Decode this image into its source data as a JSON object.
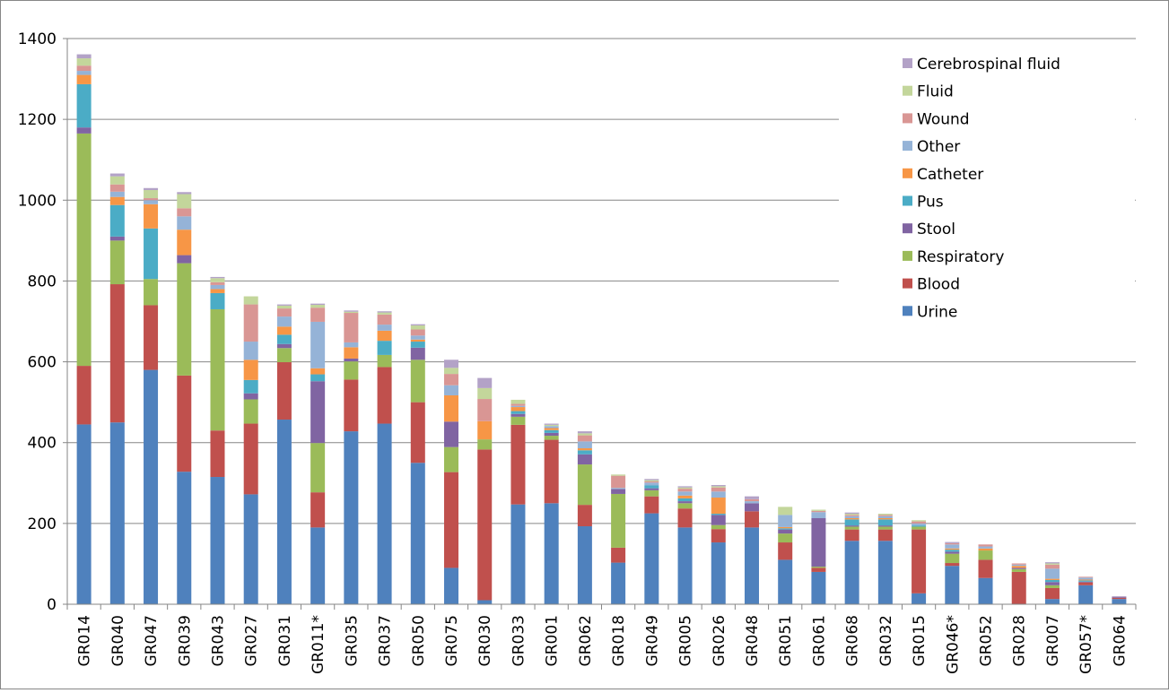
{
  "chart_data": {
    "type": "bar",
    "stacked": true,
    "title": "",
    "xlabel": "",
    "ylabel": "",
    "ylim": [
      0,
      1400
    ],
    "yticks": [
      0,
      200,
      400,
      600,
      800,
      1000,
      1200,
      1400
    ],
    "grid": "horizontal",
    "legend_position": "top-right",
    "categories": [
      "GR014",
      "GR040",
      "GR047",
      "GR039",
      "GR043",
      "GR027",
      "GR031",
      "GR011*",
      "GR035",
      "GR037",
      "GR050",
      "GR075",
      "GR030",
      "GR033",
      "GR001",
      "GR062",
      "GR018",
      "GR049",
      "GR005",
      "GR026",
      "GR048",
      "GR051",
      "GR061",
      "GR068",
      "GR032",
      "GR015",
      "GR046*",
      "GR052",
      "GR028",
      "GR007",
      "GR057*",
      "GR064"
    ],
    "series": [
      {
        "name": "Urine",
        "color": "#4F81BD",
        "values": [
          445,
          450,
          580,
          328,
          315,
          272,
          457,
          190,
          428,
          447,
          350,
          90,
          10,
          247,
          250,
          193,
          103,
          225,
          190,
          153,
          190,
          110,
          80,
          157,
          157,
          27,
          95,
          65,
          0,
          13,
          47,
          13
        ]
      },
      {
        "name": "Blood",
        "color": "#C0504D",
        "values": [
          145,
          342,
          160,
          238,
          115,
          175,
          142,
          87,
          128,
          140,
          150,
          237,
          373,
          197,
          157,
          53,
          37,
          42,
          47,
          33,
          40,
          43,
          10,
          28,
          28,
          158,
          7,
          45,
          80,
          27,
          7,
          3
        ]
      },
      {
        "name": "Respiratory",
        "color": "#9BBB59",
        "values": [
          575,
          108,
          65,
          278,
          300,
          60,
          35,
          122,
          45,
          30,
          105,
          62,
          25,
          20,
          10,
          100,
          133,
          15,
          13,
          10,
          0,
          22,
          3,
          7,
          7,
          7,
          23,
          23,
          7,
          7,
          0,
          0
        ]
      },
      {
        "name": "Stool",
        "color": "#8064A2",
        "values": [
          15,
          10,
          0,
          20,
          0,
          15,
          10,
          153,
          7,
          0,
          30,
          63,
          0,
          7,
          7,
          25,
          12,
          5,
          5,
          25,
          20,
          10,
          120,
          3,
          3,
          0,
          5,
          0,
          3,
          8,
          2,
          3
        ]
      },
      {
        "name": "Pus",
        "color": "#4BACC6",
        "values": [
          107,
          78,
          125,
          0,
          40,
          33,
          23,
          17,
          0,
          35,
          15,
          0,
          0,
          7,
          7,
          10,
          0,
          7,
          7,
          3,
          0,
          3,
          0,
          15,
          15,
          3,
          5,
          0,
          0,
          5,
          3,
          0
        ]
      },
      {
        "name": "Catheter",
        "color": "#F79646",
        "values": [
          23,
          20,
          60,
          63,
          10,
          50,
          20,
          15,
          28,
          25,
          5,
          65,
          45,
          10,
          5,
          5,
          0,
          0,
          7,
          40,
          0,
          3,
          0,
          3,
          3,
          0,
          3,
          5,
          5,
          3,
          2,
          0
        ]
      },
      {
        "name": "Other",
        "color": "#95B3D7",
        "values": [
          10,
          13,
          10,
          33,
          10,
          45,
          25,
          115,
          12,
          15,
          10,
          25,
          0,
          3,
          5,
          17,
          3,
          7,
          10,
          15,
          5,
          30,
          15,
          5,
          5,
          5,
          10,
          5,
          3,
          25,
          5,
          0
        ]
      },
      {
        "name": "Wound",
        "color": "#D99694",
        "values": [
          13,
          18,
          5,
          20,
          7,
          92,
          20,
          35,
          73,
          25,
          15,
          28,
          55,
          5,
          0,
          15,
          30,
          3,
          7,
          10,
          5,
          0,
          3,
          3,
          3,
          5,
          3,
          5,
          3,
          10,
          2,
          0
        ]
      },
      {
        "name": "Fluid",
        "color": "#C3D69B",
        "values": [
          18,
          20,
          20,
          35,
          10,
          20,
          7,
          7,
          3,
          5,
          10,
          15,
          27,
          10,
          3,
          5,
          3,
          3,
          3,
          3,
          0,
          20,
          3,
          3,
          3,
          3,
          0,
          0,
          0,
          3,
          0,
          0
        ]
      },
      {
        "name": "Cerebrospinal fluid",
        "color": "#B3A2C7",
        "values": [
          10,
          7,
          5,
          5,
          3,
          0,
          3,
          3,
          3,
          3,
          3,
          20,
          25,
          0,
          3,
          5,
          0,
          3,
          3,
          3,
          7,
          0,
          0,
          3,
          0,
          0,
          3,
          0,
          0,
          3,
          0,
          0
        ]
      }
    ]
  }
}
